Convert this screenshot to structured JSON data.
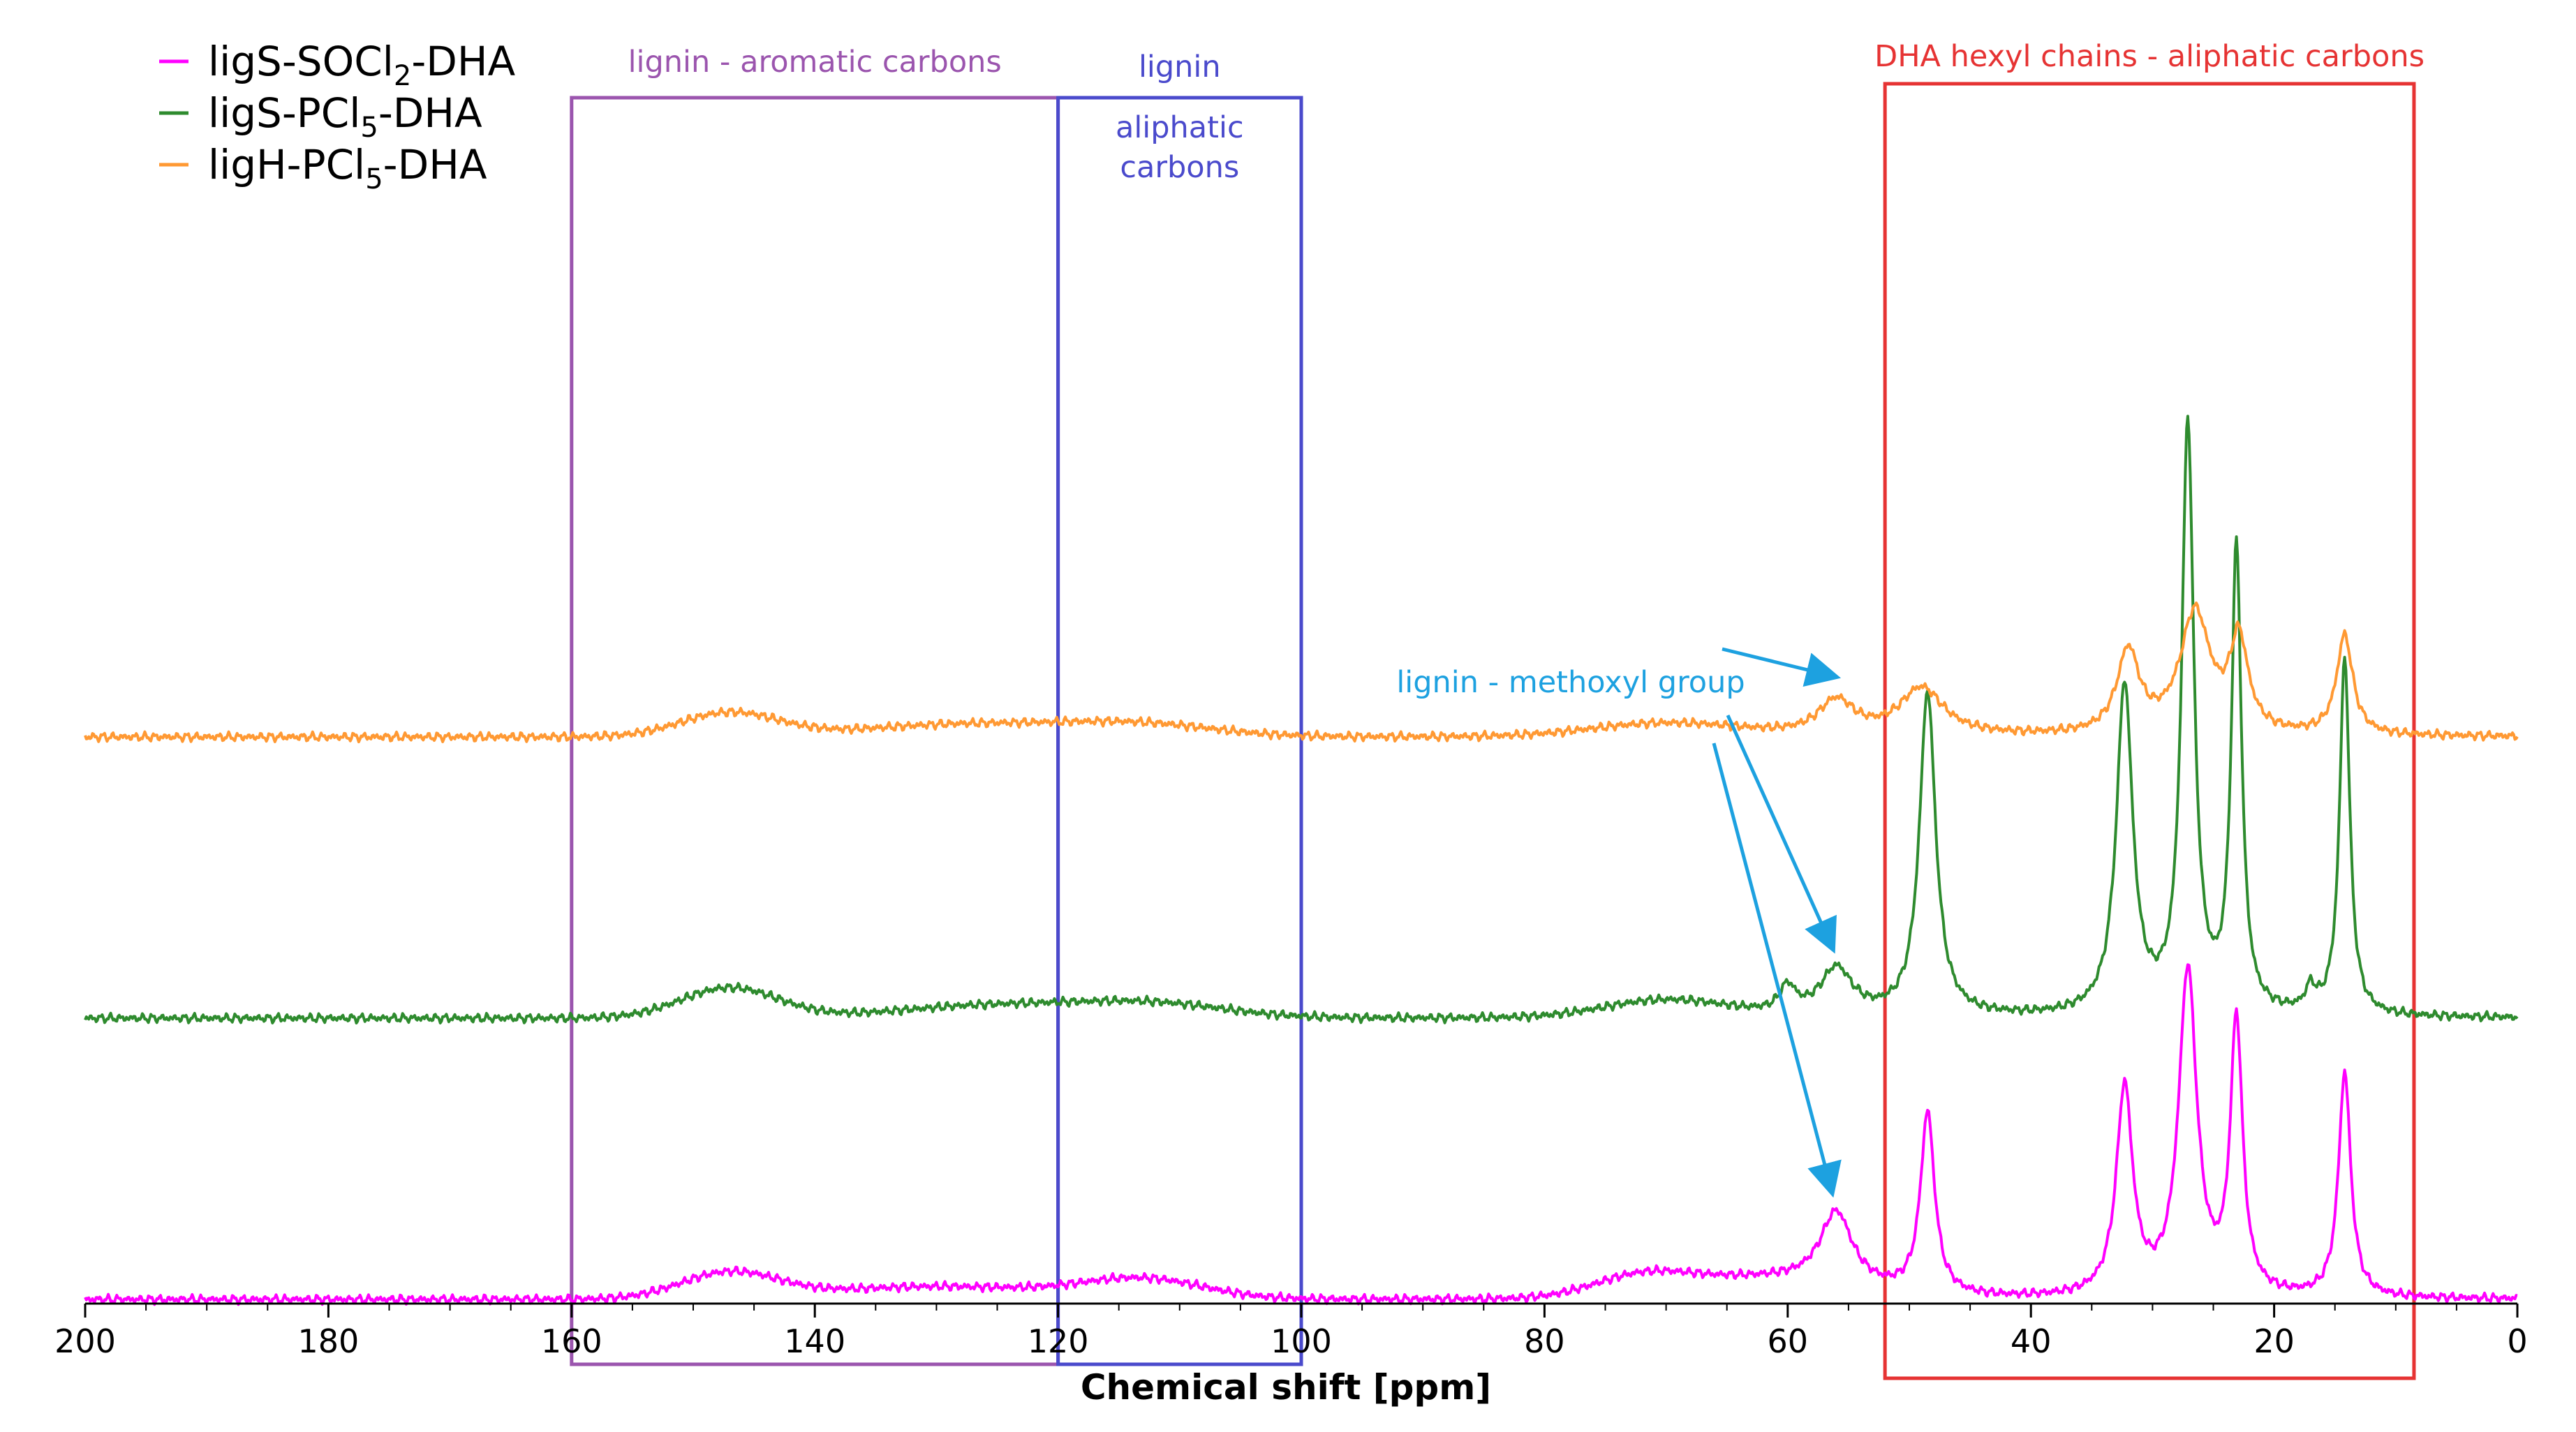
{
  "chart_data": {
    "type": "line",
    "title": "",
    "xlabel": "Chemical shift [ppm]",
    "ylabel": "",
    "xlim": [
      200,
      0
    ],
    "x_reversed": true,
    "x_ticks": [
      "200",
      "180",
      "160",
      "140",
      "120",
      "100",
      "80",
      "60",
      "40",
      "20",
      "0"
    ],
    "legend_position": "top-left",
    "series": [
      {
        "name": "ligS-SOCl",
        "name_sub": "2",
        "name_suffix": "-DHA",
        "color": "#ff00ff",
        "baseline_y": 0.0,
        "peaks": [
          {
            "ppm": 147,
            "height": 0.6,
            "width": 4
          },
          {
            "ppm": 130,
            "height": 0.3,
            "width": 9
          },
          {
            "ppm": 113,
            "height": 0.45,
            "width": 5
          },
          {
            "ppm": 72,
            "height": 0.45,
            "width": 4
          },
          {
            "ppm": 62,
            "height": 0.45,
            "width": 7
          },
          {
            "ppm": 56,
            "height": 1.7,
            "width": 1.6
          },
          {
            "ppm": 48.5,
            "height": 4.2,
            "width": 0.7
          },
          {
            "ppm": 32.3,
            "height": 4.8,
            "width": 0.8
          },
          {
            "ppm": 27.1,
            "height": 7.5,
            "width": 0.9
          },
          {
            "ppm": 23.1,
            "height": 6.3,
            "width": 0.6
          },
          {
            "ppm": 14.2,
            "height": 5.2,
            "width": 0.6
          }
        ]
      },
      {
        "name": "ligS-PCl",
        "name_sub": "5",
        "name_suffix": "-DHA",
        "color": "#2e8b2e",
        "baseline_y": 6.5,
        "peaks": [
          {
            "ppm": 147,
            "height": 0.7,
            "width": 4
          },
          {
            "ppm": 125,
            "height": 0.3,
            "width": 8
          },
          {
            "ppm": 112,
            "height": 0.3,
            "width": 6
          },
          {
            "ppm": 70,
            "height": 0.4,
            "width": 5
          },
          {
            "ppm": 60,
            "height": 0.6,
            "width": 0.8
          },
          {
            "ppm": 56,
            "height": 1.1,
            "width": 1.6
          },
          {
            "ppm": 48.5,
            "height": 7.5,
            "width": 0.8
          },
          {
            "ppm": 32.3,
            "height": 7.6,
            "width": 0.8
          },
          {
            "ppm": 27.1,
            "height": 13.6,
            "width": 0.6
          },
          {
            "ppm": 23.1,
            "height": 10.7,
            "width": 0.5
          },
          {
            "ppm": 17,
            "height": 0.5,
            "width": 0.5
          },
          {
            "ppm": 14.2,
            "height": 8.3,
            "width": 0.5
          }
        ]
      },
      {
        "name": "ligH-PCl",
        "name_sub": "5",
        "name_suffix": "-DHA",
        "color": "#ff9933",
        "baseline_y": 13.0,
        "peaks": [
          {
            "ppm": 147,
            "height": 0.55,
            "width": 4
          },
          {
            "ppm": 127,
            "height": 0.3,
            "width": 9
          },
          {
            "ppm": 113,
            "height": 0.25,
            "width": 6
          },
          {
            "ppm": 70,
            "height": 0.3,
            "width": 6
          },
          {
            "ppm": 56,
            "height": 0.8,
            "width": 1.8
          },
          {
            "ppm": 49,
            "height": 1.1,
            "width": 2.2
          },
          {
            "ppm": 32,
            "height": 1.9,
            "width": 1.1
          },
          {
            "ppm": 26.5,
            "height": 2.8,
            "width": 1.5
          },
          {
            "ppm": 22.9,
            "height": 2.1,
            "width": 0.9
          },
          {
            "ppm": 14.2,
            "height": 2.3,
            "width": 0.8
          }
        ]
      }
    ],
    "regions": [
      {
        "label": "lignin - aromatic carbons",
        "x_range": [
          160,
          120
        ],
        "color": "#9b55ae"
      },
      {
        "label_lines": [
          "lignin",
          "aliphatic",
          "carbons"
        ],
        "x_range": [
          120,
          100
        ],
        "color": "#4a4acc"
      },
      {
        "label": "DHA hexyl chains - aliphatic carbons",
        "x_range": [
          52,
          8.5
        ],
        "color": "#e63333"
      }
    ],
    "annotations": [
      {
        "text": "lignin - methoxyl group",
        "color": "#1da1e0",
        "arrow_targets": [
          {
            "ppm": 56,
            "series": 2
          },
          {
            "ppm": 56,
            "series": 1
          },
          {
            "ppm": 56,
            "series": 0
          }
        ]
      }
    ]
  }
}
